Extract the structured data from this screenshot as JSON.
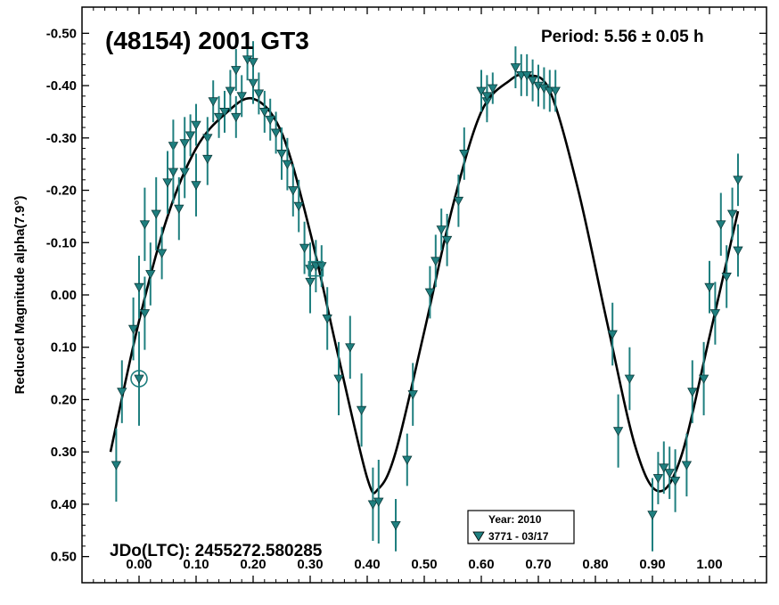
{
  "chart_data": {
    "type": "scatter",
    "title": "(48154) 2001 GT3",
    "period_text": "Period: 5.56 ± 0.05 h",
    "jd_text": "JDo(LTC): 2455272.580285",
    "ylabel": "Reduced Magnitude alpha(7.9°)",
    "xlabel": "",
    "xlim": [
      -0.1,
      1.1
    ],
    "ylim": [
      -0.55,
      0.55
    ],
    "y_inverted": true,
    "x_ticks": [
      "0.00",
      "0.10",
      "0.20",
      "0.30",
      "0.40",
      "0.50",
      "0.60",
      "0.70",
      "0.80",
      "0.90",
      "1.00"
    ],
    "y_ticks": [
      "-0.50",
      "-0.40",
      "-0.30",
      "-0.20",
      "-0.10",
      "0.00",
      "0.10",
      "0.20",
      "0.30",
      "0.40",
      "0.50"
    ],
    "legend": {
      "title": "Year: 2010",
      "entry": "3771 - 03/17",
      "placement": "bottom-center"
    },
    "colors": {
      "points": "#1f7f7f",
      "fit": "#000000",
      "axes": "#000000"
    },
    "series": [
      {
        "name": "3771 - 03/17",
        "points": [
          {
            "x": -0.04,
            "y": 0.325,
            "err": 0.07
          },
          {
            "x": -0.03,
            "y": 0.185,
            "err": 0.06
          },
          {
            "x": -0.01,
            "y": 0.065,
            "err": 0.06
          },
          {
            "x": 0.0,
            "y": -0.015,
            "err": 0.06
          },
          {
            "x": 0.0,
            "y": 0.16,
            "err": 0.09
          },
          {
            "x": 0.01,
            "y": 0.035,
            "err": 0.07
          },
          {
            "x": 0.01,
            "y": -0.135,
            "err": 0.07
          },
          {
            "x": 0.02,
            "y": -0.04,
            "err": 0.06
          },
          {
            "x": 0.03,
            "y": -0.155,
            "err": 0.07
          },
          {
            "x": 0.04,
            "y": -0.08,
            "err": 0.05
          },
          {
            "x": 0.05,
            "y": -0.215,
            "err": 0.06
          },
          {
            "x": 0.06,
            "y": -0.285,
            "err": 0.05
          },
          {
            "x": 0.06,
            "y": -0.235,
            "err": 0.06
          },
          {
            "x": 0.07,
            "y": -0.165,
            "err": 0.06
          },
          {
            "x": 0.08,
            "y": -0.235,
            "err": 0.05
          },
          {
            "x": 0.08,
            "y": -0.29,
            "err": 0.05
          },
          {
            "x": 0.09,
            "y": -0.305,
            "err": 0.04
          },
          {
            "x": 0.1,
            "y": -0.325,
            "err": 0.04
          },
          {
            "x": 0.1,
            "y": -0.21,
            "err": 0.06
          },
          {
            "x": 0.12,
            "y": -0.3,
            "err": 0.04
          },
          {
            "x": 0.12,
            "y": -0.26,
            "err": 0.05
          },
          {
            "x": 0.13,
            "y": -0.37,
            "err": 0.04
          },
          {
            "x": 0.14,
            "y": -0.34,
            "err": 0.04
          },
          {
            "x": 0.15,
            "y": -0.35,
            "err": 0.04
          },
          {
            "x": 0.16,
            "y": -0.39,
            "err": 0.04
          },
          {
            "x": 0.17,
            "y": -0.34,
            "err": 0.04
          },
          {
            "x": 0.17,
            "y": -0.43,
            "err": 0.04
          },
          {
            "x": 0.18,
            "y": -0.38,
            "err": 0.04
          },
          {
            "x": 0.19,
            "y": -0.45,
            "err": 0.04
          },
          {
            "x": 0.2,
            "y": -0.405,
            "err": 0.04
          },
          {
            "x": 0.2,
            "y": -0.445,
            "err": 0.04
          },
          {
            "x": 0.21,
            "y": -0.385,
            "err": 0.04
          },
          {
            "x": 0.22,
            "y": -0.35,
            "err": 0.04
          },
          {
            "x": 0.23,
            "y": -0.335,
            "err": 0.04
          },
          {
            "x": 0.24,
            "y": -0.31,
            "err": 0.04
          },
          {
            "x": 0.25,
            "y": -0.27,
            "err": 0.05
          },
          {
            "x": 0.26,
            "y": -0.25,
            "err": 0.05
          },
          {
            "x": 0.27,
            "y": -0.2,
            "err": 0.05
          },
          {
            "x": 0.28,
            "y": -0.17,
            "err": 0.05
          },
          {
            "x": 0.29,
            "y": -0.09,
            "err": 0.05
          },
          {
            "x": 0.3,
            "y": -0.05,
            "err": 0.05
          },
          {
            "x": 0.3,
            "y": -0.025,
            "err": 0.06
          },
          {
            "x": 0.31,
            "y": -0.055,
            "err": 0.05
          },
          {
            "x": 0.32,
            "y": -0.055,
            "err": 0.04
          },
          {
            "x": 0.33,
            "y": 0.045,
            "err": 0.06
          },
          {
            "x": 0.35,
            "y": 0.16,
            "err": 0.07
          },
          {
            "x": 0.37,
            "y": 0.1,
            "err": 0.06
          },
          {
            "x": 0.39,
            "y": 0.22,
            "err": 0.07
          },
          {
            "x": 0.41,
            "y": 0.4,
            "err": 0.07
          },
          {
            "x": 0.42,
            "y": 0.395,
            "err": 0.08
          },
          {
            "x": 0.45,
            "y": 0.44,
            "err": 0.05
          },
          {
            "x": 0.47,
            "y": 0.315,
            "err": 0.05
          },
          {
            "x": 0.48,
            "y": 0.19,
            "err": 0.06
          },
          {
            "x": 0.51,
            "y": -0.005,
            "err": 0.05
          },
          {
            "x": 0.52,
            "y": -0.065,
            "err": 0.05
          },
          {
            "x": 0.53,
            "y": -0.125,
            "err": 0.04
          },
          {
            "x": 0.54,
            "y": -0.105,
            "err": 0.05
          },
          {
            "x": 0.56,
            "y": -0.18,
            "err": 0.05
          },
          {
            "x": 0.57,
            "y": -0.27,
            "err": 0.05
          },
          {
            "x": 0.6,
            "y": -0.39,
            "err": 0.04
          },
          {
            "x": 0.61,
            "y": -0.37,
            "err": 0.04
          },
          {
            "x": 0.61,
            "y": -0.38,
            "err": 0.04
          },
          {
            "x": 0.62,
            "y": -0.395,
            "err": 0.03
          },
          {
            "x": 0.66,
            "y": -0.435,
            "err": 0.04
          },
          {
            "x": 0.67,
            "y": -0.42,
            "err": 0.04
          },
          {
            "x": 0.68,
            "y": -0.42,
            "err": 0.04
          },
          {
            "x": 0.69,
            "y": -0.41,
            "err": 0.04
          },
          {
            "x": 0.7,
            "y": -0.4,
            "err": 0.04
          },
          {
            "x": 0.71,
            "y": -0.395,
            "err": 0.04
          },
          {
            "x": 0.72,
            "y": -0.39,
            "err": 0.04
          },
          {
            "x": 0.73,
            "y": -0.39,
            "err": 0.04
          },
          {
            "x": 0.83,
            "y": 0.075,
            "err": 0.06
          },
          {
            "x": 0.84,
            "y": 0.26,
            "err": 0.07
          },
          {
            "x": 0.86,
            "y": 0.16,
            "err": 0.06
          },
          {
            "x": 0.9,
            "y": 0.42,
            "err": 0.07
          },
          {
            "x": 0.91,
            "y": 0.35,
            "err": 0.05
          },
          {
            "x": 0.92,
            "y": 0.33,
            "err": 0.05
          },
          {
            "x": 0.93,
            "y": 0.34,
            "err": 0.05
          },
          {
            "x": 0.94,
            "y": 0.355,
            "err": 0.06
          },
          {
            "x": 0.96,
            "y": 0.325,
            "err": 0.06
          },
          {
            "x": 0.97,
            "y": 0.185,
            "err": 0.06
          },
          {
            "x": 0.99,
            "y": 0.16,
            "err": 0.07
          },
          {
            "x": 1.0,
            "y": -0.015,
            "err": 0.05
          },
          {
            "x": 1.01,
            "y": 0.035,
            "err": 0.06
          },
          {
            "x": 1.02,
            "y": -0.135,
            "err": 0.06
          },
          {
            "x": 1.03,
            "y": -0.035,
            "err": 0.06
          },
          {
            "x": 1.04,
            "y": -0.155,
            "err": 0.05
          },
          {
            "x": 1.05,
            "y": -0.22,
            "err": 0.05
          },
          {
            "x": 1.05,
            "y": -0.085,
            "err": 0.05
          }
        ]
      }
    ],
    "highlighted_points": [
      {
        "x": 0.0,
        "y": 0.16,
        "marker": "circle"
      },
      {
        "x": 0.31,
        "y": -0.05,
        "marker": "square"
      }
    ],
    "fit_curve": {
      "x_range": [
        -0.05,
        1.05
      ],
      "points": [
        [
          -0.05,
          0.3
        ],
        [
          0.0,
          0.05
        ],
        [
          0.05,
          -0.15
        ],
        [
          0.1,
          -0.28
        ],
        [
          0.15,
          -0.345
        ],
        [
          0.2,
          -0.375
        ],
        [
          0.25,
          -0.31
        ],
        [
          0.3,
          -0.12
        ],
        [
          0.35,
          0.12
        ],
        [
          0.4,
          0.35
        ],
        [
          0.42,
          0.37
        ],
        [
          0.45,
          0.3
        ],
        [
          0.5,
          0.07
        ],
        [
          0.55,
          -0.17
        ],
        [
          0.6,
          -0.35
        ],
        [
          0.65,
          -0.41
        ],
        [
          0.68,
          -0.42
        ],
        [
          0.72,
          -0.39
        ],
        [
          0.77,
          -0.2
        ],
        [
          0.82,
          0.05
        ],
        [
          0.87,
          0.29
        ],
        [
          0.91,
          0.375
        ],
        [
          0.95,
          0.31
        ],
        [
          1.0,
          0.08
        ],
        [
          1.05,
          -0.16
        ]
      ]
    }
  }
}
